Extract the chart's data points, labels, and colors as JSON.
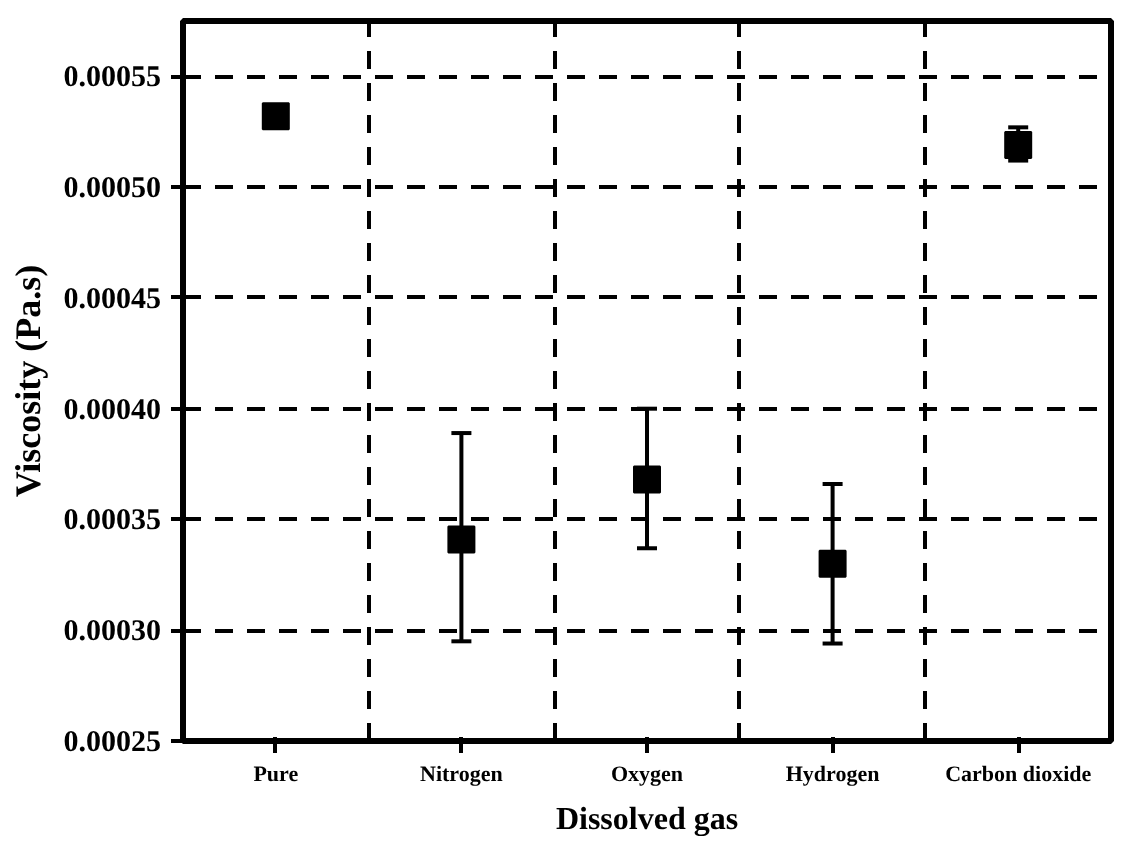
{
  "chart_data": {
    "type": "scatter",
    "xlabel": "Dissolved gas",
    "ylabel": "Viscosity (Pa.s)",
    "categories": [
      "Pure",
      "Nitrogen",
      "Oxygen",
      "Hydrogen",
      "Carbon dioxide"
    ],
    "values": [
      0.000532,
      0.000341,
      0.000368,
      0.00033,
      0.000519
    ],
    "errors": [
      null,
      [
        0.000295,
        0.000389
      ],
      [
        0.000337,
        0.0004
      ],
      [
        0.000294,
        0.000366
      ],
      [
        0.000512,
        0.000527
      ]
    ],
    "color": "#000000",
    "marker": "square",
    "grid": true,
    "ylim": [
      0.00025,
      0.000575
    ],
    "yticks": [
      0.00025,
      {
        "value": 0.0003,
        "label": "0.00030"
      },
      0.00035,
      {
        "value": 0.0004,
        "label": "0.00040"
      },
      0.00045,
      {
        "value": 0.0005,
        "label": "0.00050"
      },
      0.00055
    ]
  }
}
